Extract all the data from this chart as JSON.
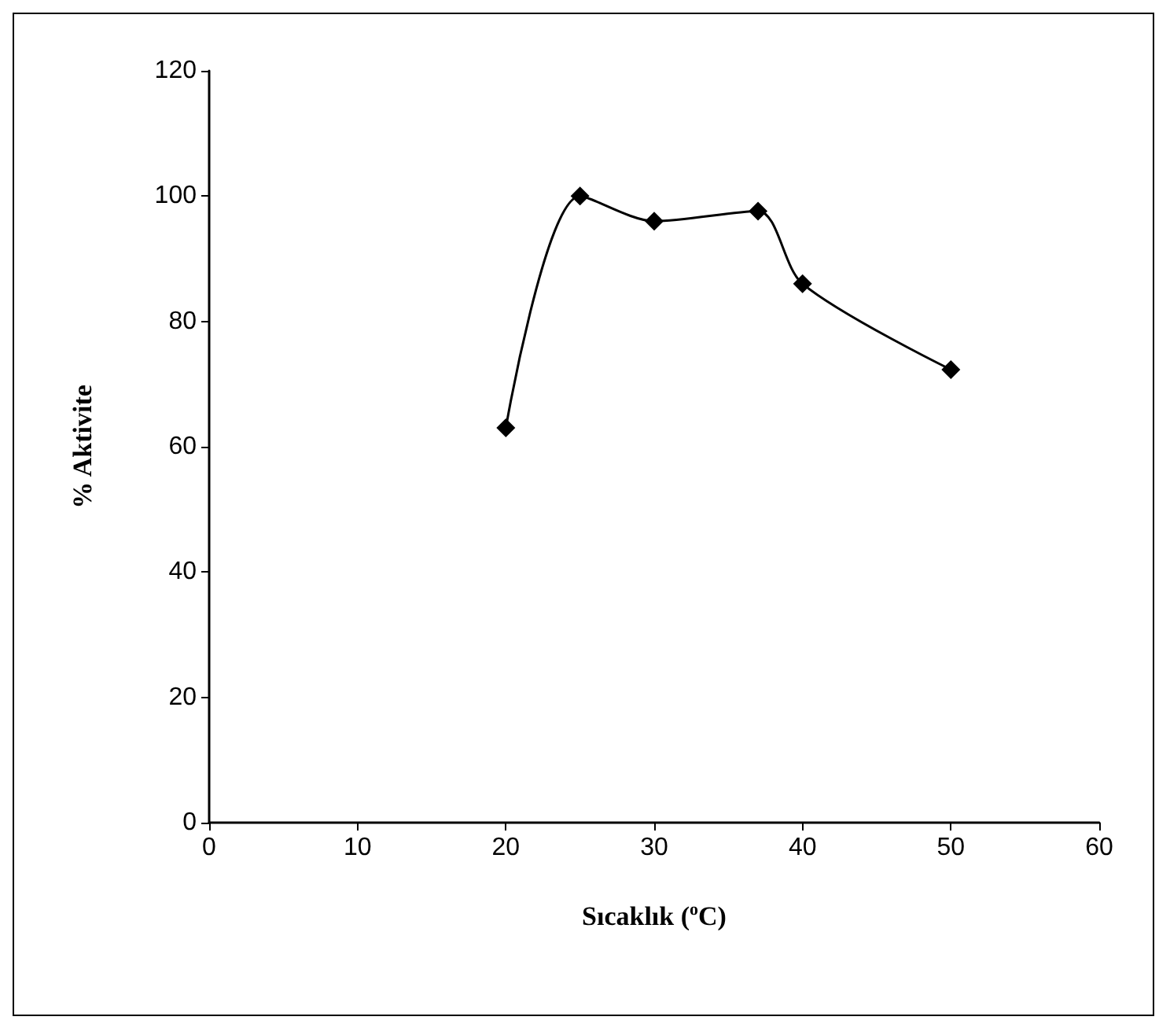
{
  "chart_data": {
    "type": "line",
    "xlabel": "Sıcaklık ($^{o}$C)",
    "ylabel": "% Aktivite",
    "x": [
      20,
      25,
      30,
      37,
      40,
      50
    ],
    "series": [
      {
        "color": "#000000",
        "values": [
          63,
          100,
          96,
          97.6,
          86,
          72.3
        ]
      }
    ],
    "xlim": [
      0,
      60
    ],
    "xticks": [
      0,
      10,
      20,
      30,
      40,
      50,
      60
    ],
    "ylim": [
      0,
      120
    ],
    "yticks": [
      0,
      20,
      40,
      60,
      80,
      100,
      120
    ],
    "grid": false,
    "marker": "diamond",
    "line_style": "solid"
  }
}
